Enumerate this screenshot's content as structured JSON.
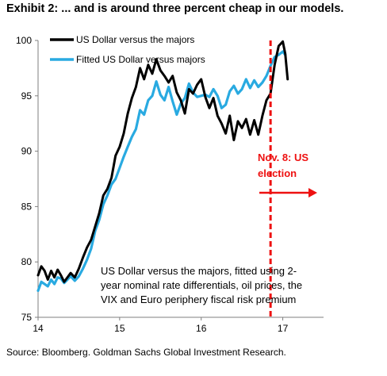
{
  "title": "Exhibit 2: ... and is around three percent cheap in our models.",
  "source": "Source: Bloomberg. Goldman Sachs Global Investment Research.",
  "colors": {
    "actual": "#000000",
    "fitted": "#29aae1",
    "event": "#ee1111",
    "axis": "#7f7f7f"
  },
  "chart_data": {
    "type": "line",
    "xlim": [
      14,
      17.5
    ],
    "ylim": [
      75,
      100
    ],
    "x_ticks": [
      14,
      15,
      16,
      17
    ],
    "x_tick_labels": [
      "14",
      "15",
      "16",
      "17"
    ],
    "y_ticks": [
      75,
      80,
      85,
      90,
      95,
      100
    ],
    "y_tick_labels": [
      "75",
      "80",
      "85",
      "90",
      "95",
      "100"
    ],
    "legend_position": "top-left",
    "grid": false,
    "series": [
      {
        "name": "US Dollar versus the majors",
        "color": "#000000",
        "x": [
          14.0,
          14.04,
          14.08,
          14.12,
          14.16,
          14.2,
          14.24,
          14.28,
          14.32,
          14.36,
          14.4,
          14.45,
          14.5,
          14.55,
          14.6,
          14.65,
          14.7,
          14.75,
          14.8,
          14.85,
          14.9,
          14.95,
          15.0,
          15.05,
          15.1,
          15.15,
          15.2,
          15.25,
          15.3,
          15.35,
          15.4,
          15.45,
          15.5,
          15.55,
          15.6,
          15.65,
          15.7,
          15.75,
          15.8,
          15.85,
          15.9,
          15.95,
          16.0,
          16.05,
          16.1,
          16.15,
          16.2,
          16.25,
          16.3,
          16.35,
          16.4,
          16.45,
          16.5,
          16.55,
          16.6,
          16.65,
          16.7,
          16.75,
          16.8,
          16.85,
          16.9,
          16.95,
          17.0,
          17.03,
          17.06
        ],
        "values": [
          78.8,
          79.6,
          79.2,
          78.4,
          79.2,
          78.6,
          79.3,
          78.8,
          78.2,
          78.6,
          79.0,
          78.6,
          79.4,
          80.4,
          81.3,
          82.0,
          83.2,
          84.4,
          86.0,
          86.6,
          87.6,
          89.6,
          90.4,
          91.6,
          93.4,
          94.8,
          95.8,
          97.5,
          96.5,
          97.8,
          97.0,
          98.3,
          97.3,
          96.8,
          96.2,
          96.8,
          95.3,
          94.6,
          93.4,
          95.6,
          95.2,
          96.0,
          96.5,
          94.9,
          93.9,
          94.8,
          93.2,
          92.5,
          91.6,
          93.2,
          91.0,
          92.7,
          92.1,
          92.9,
          91.5,
          92.8,
          91.5,
          93.2,
          94.6,
          95.2,
          97.8,
          99.5,
          99.9,
          98.8,
          96.5
        ]
      },
      {
        "name": "Fitted US Dollar versus majors",
        "color": "#29aae1",
        "x": [
          14.0,
          14.04,
          14.08,
          14.12,
          14.16,
          14.2,
          14.24,
          14.28,
          14.32,
          14.36,
          14.4,
          14.45,
          14.5,
          14.55,
          14.6,
          14.65,
          14.7,
          14.75,
          14.8,
          14.85,
          14.9,
          14.95,
          15.0,
          15.05,
          15.1,
          15.15,
          15.2,
          15.25,
          15.3,
          15.35,
          15.4,
          15.45,
          15.5,
          15.55,
          15.6,
          15.65,
          15.7,
          15.75,
          15.8,
          15.85,
          15.9,
          15.95,
          16.0,
          16.05,
          16.1,
          16.15,
          16.2,
          16.25,
          16.3,
          16.35,
          16.4,
          16.45,
          16.5,
          16.55,
          16.6,
          16.65,
          16.7,
          16.75,
          16.8,
          16.85,
          16.9,
          16.95,
          17.0,
          17.03
        ],
        "values": [
          77.4,
          78.2,
          78.0,
          77.8,
          78.4,
          78.0,
          78.6,
          78.5,
          78.1,
          78.4,
          78.7,
          78.3,
          78.7,
          79.4,
          80.2,
          81.2,
          82.8,
          83.8,
          85.2,
          86.0,
          87.0,
          87.5,
          88.5,
          89.5,
          90.4,
          91.3,
          92.0,
          93.7,
          93.3,
          94.6,
          95.0,
          96.3,
          95.1,
          94.6,
          95.8,
          94.5,
          93.3,
          94.3,
          94.8,
          96.1,
          95.3,
          94.9,
          95.0,
          95.1,
          94.9,
          95.6,
          95.0,
          93.9,
          94.2,
          95.4,
          95.9,
          95.2,
          95.6,
          96.5,
          95.7,
          96.4,
          95.8,
          96.2,
          96.8,
          97.7,
          98.5,
          98.7,
          99.0,
          98.7
        ]
      }
    ],
    "event": {
      "x": 16.85,
      "label_line1": "Nov. 8: US",
      "label_line2": "election"
    },
    "annotation": [
      "US Dollar versus the majors, fitted using 2-",
      "year nominal rate differentials, oil prices, the",
      "VIX and Euro periphery fiscal risk premium"
    ]
  }
}
